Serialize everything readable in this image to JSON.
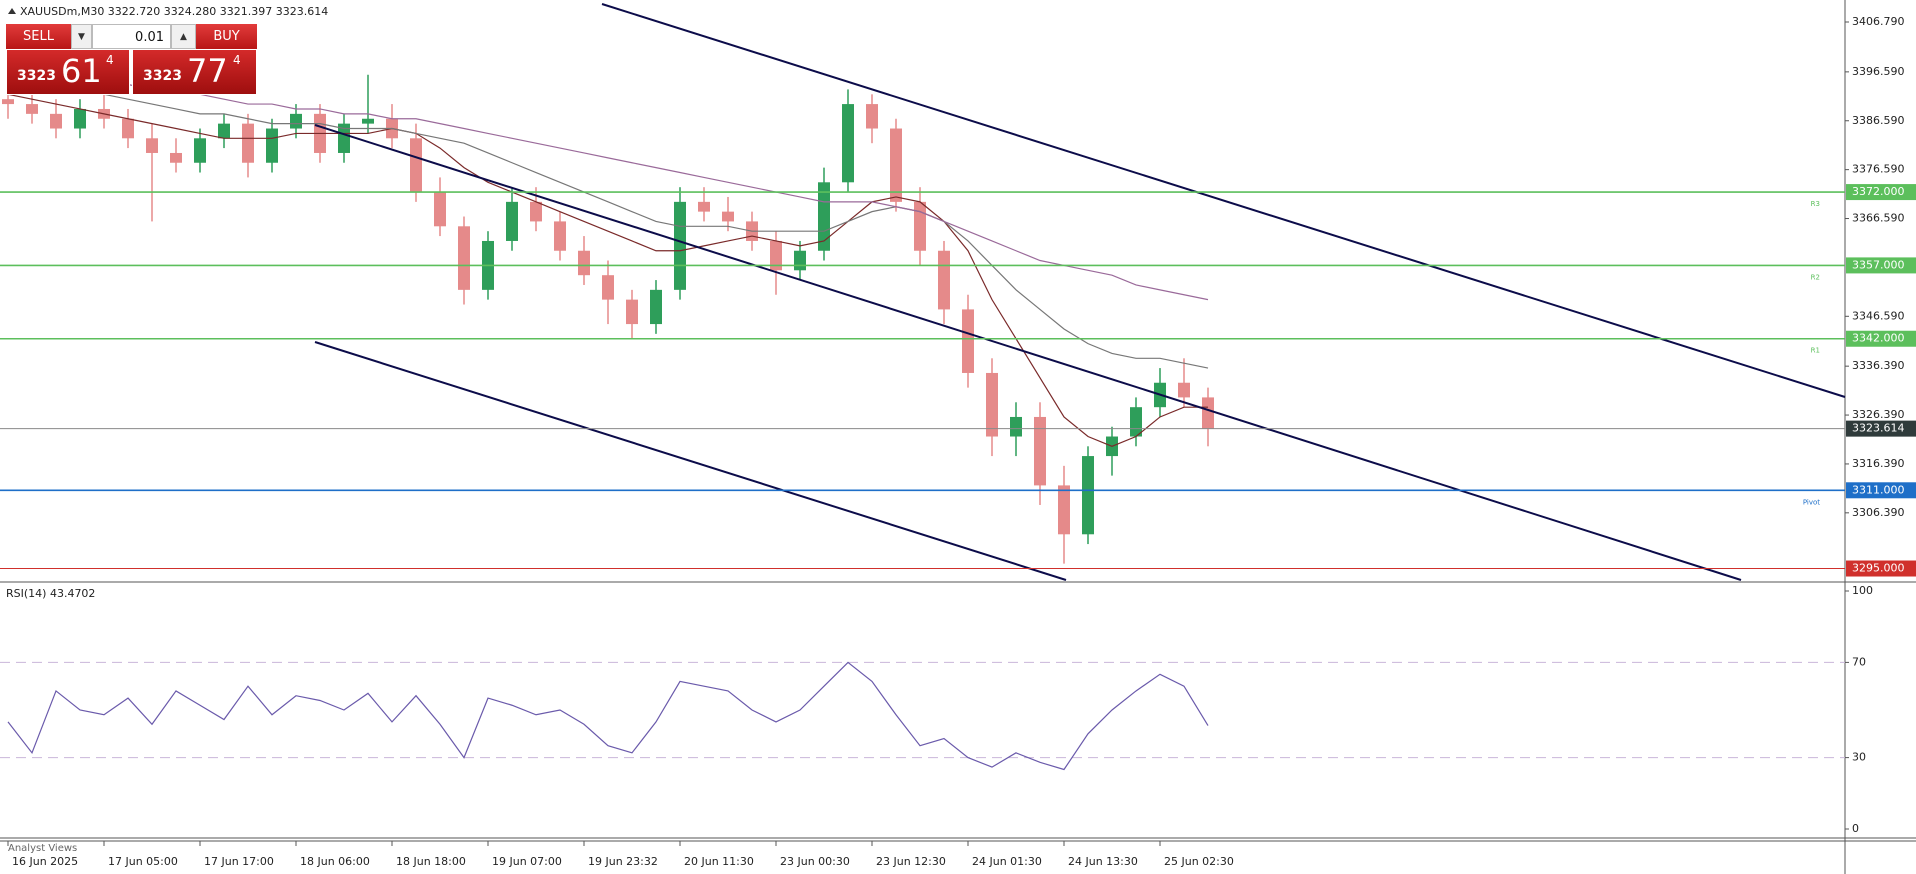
{
  "symbol_info": "XAUUSDm,M30  3322.720 3324.280 3321.397 3323.614",
  "trade_panel": {
    "sell": "SELL",
    "buy": "BUY",
    "volume": "0.01",
    "sell_price": {
      "big": "3323",
      "main": "61",
      "small": "4"
    },
    "buy_price": {
      "big": "3323",
      "main": "77",
      "small": "4"
    }
  },
  "footer": "Analyst Views",
  "chart_data": [
    {
      "type": "candlestick",
      "categories": [
        "16 Jun 2025",
        null,
        null,
        null,
        "17 Jun 05:00",
        null,
        null,
        null,
        "17 Jun 17:00",
        null,
        null,
        null,
        "18 Jun 06:00",
        null,
        null,
        null,
        "18 Jun 18:00",
        null,
        null,
        null,
        "19 Jun 07:00",
        null,
        null,
        null,
        "19 Jun 23:32",
        null,
        null,
        null,
        "20 Jun 11:30",
        null,
        null,
        null,
        "23 Jun 00:30",
        null,
        null,
        null,
        "23 Jun 12:30",
        null,
        null,
        null,
        "24 Jun 01:30",
        null,
        null,
        null,
        "24 Jun 13:30",
        null,
        null,
        null,
        "25 Jun 02:30",
        null,
        null
      ],
      "open": [
        3391,
        3390,
        3388,
        3385,
        3389,
        3387,
        3383,
        3380,
        3378,
        3383,
        3386,
        3378,
        3385,
        3388,
        3380,
        3386,
        3387,
        3383,
        3372,
        3365,
        3352,
        3362,
        3370,
        3366,
        3360,
        3355,
        3350,
        3345,
        3352,
        3370,
        3368,
        3366,
        3362,
        3356,
        3360,
        3374,
        3390,
        3385,
        3370,
        3360,
        3348,
        3335,
        3322,
        3326,
        3312,
        3302,
        3318,
        3322,
        3328,
        3333,
        3330
      ],
      "high": [
        3394,
        3392,
        3391,
        3391,
        3392,
        3389,
        3386,
        3383,
        3385,
        3388,
        3388,
        3387,
        3390,
        3390,
        3388,
        3396,
        3390,
        3386,
        3375,
        3367,
        3364,
        3373,
        3373,
        3368,
        3363,
        3358,
        3352,
        3354,
        3373,
        3373,
        3371,
        3368,
        3364,
        3362,
        3377,
        3393,
        3392,
        3387,
        3373,
        3362,
        3351,
        3338,
        3329,
        3329,
        3316,
        3320,
        3324,
        3330,
        3336,
        3338,
        3332
      ],
      "low": [
        3387,
        3386,
        3383,
        3383,
        3385,
        3381,
        3366,
        3376,
        3376,
        3381,
        3375,
        3376,
        3383,
        3378,
        3378,
        3384,
        3381,
        3370,
        3363,
        3349,
        3350,
        3360,
        3364,
        3358,
        3353,
        3345,
        3342,
        3343,
        3350,
        3366,
        3364,
        3360,
        3351,
        3354,
        3358,
        3372,
        3382,
        3368,
        3357,
        3345,
        3332,
        3318,
        3318,
        3308,
        3296,
        3300,
        3314,
        3320,
        3326,
        3328,
        3320
      ],
      "close": [
        3390,
        3388,
        3385,
        3389,
        3387,
        3383,
        3380,
        3378,
        3383,
        3386,
        3378,
        3385,
        3388,
        3380,
        3386,
        3387,
        3383,
        3372,
        3365,
        3352,
        3362,
        3370,
        3366,
        3360,
        3355,
        3350,
        3345,
        3352,
        3370,
        3368,
        3366,
        3362,
        3356,
        3360,
        3374,
        3390,
        3385,
        3370,
        3360,
        3348,
        3335,
        3322,
        3326,
        3312,
        3302,
        3318,
        3322,
        3328,
        3333,
        3330,
        3323.614
      ],
      "up_color": "#2e9e5a",
      "down_color": "#e58a8a",
      "series": [
        {
          "color": "#7a2a2a",
          "values": [
            3392,
            3391,
            3390,
            3389,
            3388,
            3387,
            3386,
            3385,
            3384,
            3383,
            3383,
            3383,
            3384,
            3384,
            3384,
            3384,
            3385,
            3384,
            3381,
            3377,
            3374,
            3372,
            3370,
            3368,
            3366,
            3364,
            3362,
            3360,
            3360,
            3361,
            3362,
            3363,
            3362,
            3361,
            3362,
            3366,
            3370,
            3371,
            3370,
            3366,
            3360,
            3350,
            3342,
            3334,
            3326,
            3322,
            3320,
            3322,
            3326,
            3328,
            3328
          ]
        },
        {
          "color": "#777777",
          "values": [
            3394,
            3394,
            3393,
            3393,
            3392,
            3391,
            3390,
            3389,
            3388,
            3388,
            3387,
            3386,
            3386,
            3386,
            3385,
            3385,
            3385,
            3384,
            3383,
            3382,
            3380,
            3378,
            3376,
            3374,
            3372,
            3370,
            3368,
            3366,
            3365,
            3365,
            3365,
            3364,
            3364,
            3364,
            3364,
            3366,
            3368,
            3369,
            3368,
            3366,
            3362,
            3357,
            3352,
            3348,
            3344,
            3341,
            3339,
            3338,
            3338,
            3337,
            3336
          ]
        },
        {
          "color": "#9a6a9a",
          "values": [
            3396,
            3396,
            3395,
            3395,
            3394,
            3394,
            3393,
            3393,
            3392,
            3391,
            3390,
            3390,
            3389,
            3389,
            3388,
            3388,
            3387,
            3387,
            3386,
            3385,
            3384,
            3383,
            3382,
            3381,
            3380,
            3379,
            3378,
            3377,
            3376,
            3375,
            3374,
            3373,
            3372,
            3371,
            3370,
            3370,
            3370,
            3369,
            3368,
            3366,
            3364,
            3362,
            3360,
            3358,
            3357,
            3356,
            3355,
            3353,
            3352,
            3351,
            3350
          ]
        }
      ],
      "ylim": [
        3292.65,
        3411.29
      ],
      "yticks": [
        {
          "value": 3406.79,
          "label": "3406.790"
        },
        {
          "value": 3396.59,
          "label": "3396.590"
        },
        {
          "value": 3386.59,
          "label": "3386.590"
        },
        {
          "value": 3376.59,
          "label": "3376.590"
        },
        {
          "value": 3366.59,
          "label": "3366.590"
        },
        {
          "value": 3346.59,
          "label": "3346.590"
        },
        {
          "value": 3336.39,
          "label": "3336.390"
        },
        {
          "value": 3326.39,
          "label": "3326.390"
        },
        {
          "value": 3316.39,
          "label": "3316.390"
        },
        {
          "value": 3306.39,
          "label": "3306.390"
        }
      ],
      "levels": [
        {
          "value": 3372,
          "label": "3372.000",
          "tag": "R3",
          "color": "#5cbf5c"
        },
        {
          "value": 3357,
          "label": "3357.000",
          "tag": "R2",
          "color": "#5cbf5c"
        },
        {
          "value": 3342,
          "label": "3342.000",
          "tag": "R1",
          "color": "#5cbf5c"
        },
        {
          "value": 3323.614,
          "label": "3323.614",
          "color": "#8a8a8a",
          "label_color": "#2f3b3b"
        },
        {
          "value": 3311,
          "label": "3311.000",
          "tag": "Pivot",
          "color": "#1e6fc8"
        },
        {
          "value": 3295,
          "label": "3295.000",
          "color": "#d0302c"
        }
      ]
    },
    {
      "type": "line",
      "title": "RSI(14) 43.4702",
      "color": "#6a5aab",
      "values": [
        45,
        32,
        58,
        50,
        48,
        55,
        44,
        58,
        52,
        46,
        60,
        48,
        56,
        54,
        50,
        57,
        45,
        56,
        44,
        30,
        55,
        52,
        48,
        50,
        44,
        35,
        32,
        45,
        62,
        60,
        58,
        50,
        45,
        50,
        60,
        70,
        62,
        48,
        35,
        38,
        30,
        26,
        32,
        28,
        25,
        40,
        50,
        58,
        65,
        60,
        43.4702
      ],
      "ylim": [
        0,
        100
      ],
      "yticks": [
        100,
        70,
        30,
        0
      ],
      "dashed_levels": [
        70,
        30
      ]
    }
  ]
}
